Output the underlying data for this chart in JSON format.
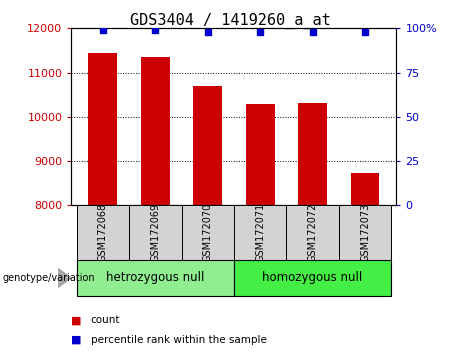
{
  "title": "GDS3404 / 1419260_a_at",
  "samples": [
    "GSM172068",
    "GSM172069",
    "GSM172070",
    "GSM172071",
    "GSM172072",
    "GSM172073"
  ],
  "counts": [
    11450,
    11360,
    10700,
    10280,
    10310,
    8720
  ],
  "percentile_ranks": [
    99,
    99,
    98,
    98,
    98,
    98
  ],
  "ylim_left": [
    8000,
    12000
  ],
  "yticks_left": [
    8000,
    9000,
    10000,
    11000,
    12000
  ],
  "ylim_right": [
    0,
    100
  ],
  "yticks_right": [
    0,
    25,
    50,
    75,
    100
  ],
  "bar_color": "#cc0000",
  "dot_color": "#0000cc",
  "groups": [
    {
      "label": "hetrozygous null",
      "color": "#90EE90",
      "start": 0,
      "end": 3
    },
    {
      "label": "homozygous null",
      "color": "#44ee44",
      "start": 3,
      "end": 6
    }
  ],
  "left_tick_color": "#cc0000",
  "right_tick_color": "#0000cc",
  "background_color": "#ffffff",
  "sample_box_color": "#d3d3d3",
  "group_label_fontsize": 8.5,
  "title_fontsize": 11,
  "tick_fontsize": 8,
  "sample_fontsize": 7,
  "legend_fontsize": 7.5,
  "genotype_label": "genotype/variation"
}
